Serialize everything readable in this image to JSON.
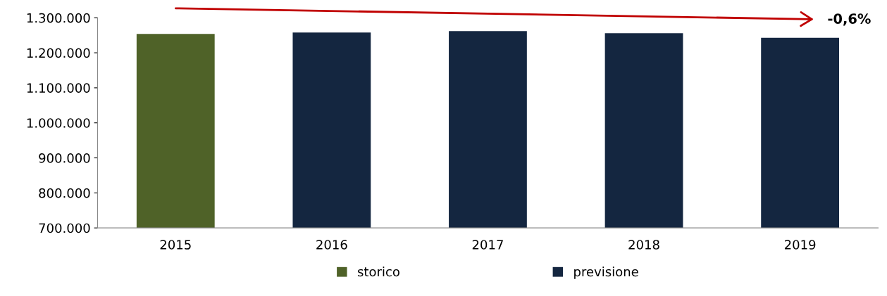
{
  "chart_data": {
    "type": "bar",
    "categories": [
      "2015",
      "2016",
      "2017",
      "2018",
      "2019"
    ],
    "series": [
      {
        "name": "storico",
        "color": "#4f6228",
        "values": [
          1254000,
          null,
          null,
          null,
          null
        ]
      },
      {
        "name": "previsione",
        "color": "#142640",
        "values": [
          null,
          1258000,
          1262000,
          1256000,
          1243000
        ]
      }
    ],
    "ylim": [
      700000,
      1300000
    ],
    "yticks": [
      {
        "value": 700000,
        "label": "700.000"
      },
      {
        "value": 800000,
        "label": "800.000"
      },
      {
        "value": 900000,
        "label": "900.000"
      },
      {
        "value": 1000000,
        "label": "1.000.000"
      },
      {
        "value": 1100000,
        "label": "1.100.000"
      },
      {
        "value": 1200000,
        "label": "1.200.000"
      },
      {
        "value": 1300000,
        "label": "1.300.000"
      }
    ],
    "annotations": [
      "-0,6%"
    ],
    "legend": "bottom",
    "grid": false
  }
}
